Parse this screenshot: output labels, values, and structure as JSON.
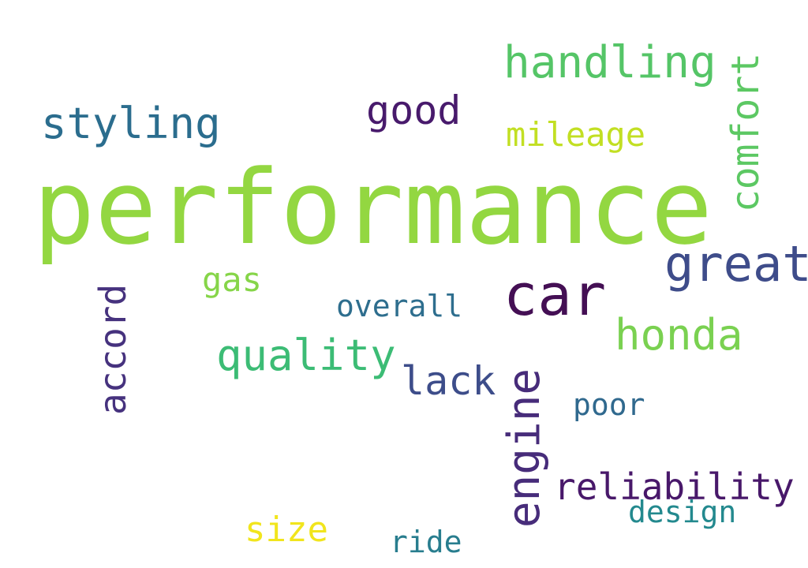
{
  "words": [
    {
      "text": "performance",
      "color": "#93d741"
    },
    {
      "text": "car",
      "color": "#440f54"
    },
    {
      "text": "handling",
      "color": "#55c567"
    },
    {
      "text": "styling",
      "color": "#2b6d8e"
    },
    {
      "text": "good",
      "color": "#481a6c"
    },
    {
      "text": "mileage",
      "color": "#c2df23"
    },
    {
      "text": "comfort",
      "color": "#5cc863"
    },
    {
      "text": "great",
      "color": "#3e4c8a"
    },
    {
      "text": "honda",
      "color": "#7ad151"
    },
    {
      "text": "gas",
      "color": "#86d549"
    },
    {
      "text": "overall",
      "color": "#2e6e8e"
    },
    {
      "text": "accord",
      "color": "#46327e"
    },
    {
      "text": "quality",
      "color": "#3cbc75"
    },
    {
      "text": "lack",
      "color": "#3d4d8a"
    },
    {
      "text": "engine",
      "color": "#472c7a"
    },
    {
      "text": "poor",
      "color": "#30698e"
    },
    {
      "text": "reliability",
      "color": "#48186a"
    },
    {
      "text": "design",
      "color": "#23898e"
    },
    {
      "text": "size",
      "color": "#f1e51d"
    },
    {
      "text": "ride",
      "color": "#287d8e"
    }
  ]
}
